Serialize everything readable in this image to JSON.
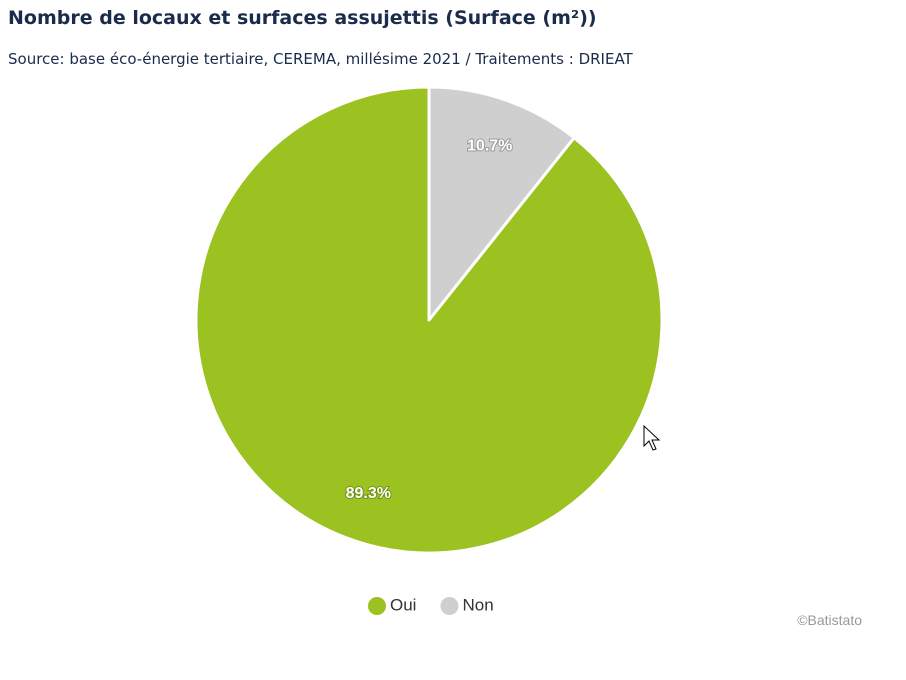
{
  "chart_data": {
    "type": "pie",
    "title": "Nombre de locaux et surfaces assujettis (Surface (m²))",
    "subtitle": "Source: base éco-énergie tertiaire, CEREMA, millésime 2021 / Traitements : DRIEAT",
    "categories": [
      "Oui",
      "Non"
    ],
    "values": [
      89.3,
      10.7
    ],
    "value_labels": [
      "89.3%",
      "10.7%"
    ],
    "colors": [
      "#9bc221",
      "#cfcfcf"
    ],
    "credit": "©Batistato"
  }
}
